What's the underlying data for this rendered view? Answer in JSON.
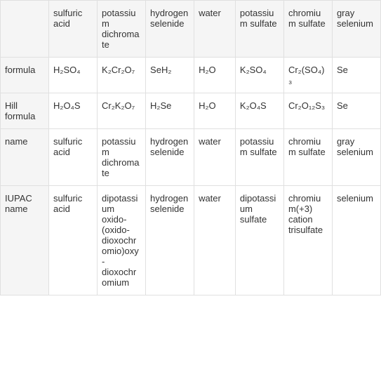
{
  "table": {
    "background_header": "#f5f5f5",
    "border_color": "#e0e0e0",
    "text_color": "#333333",
    "font_size": 13,
    "headers": {
      "row_header_bg": "#f5f5f5",
      "col1": "",
      "col2": "sulfuric acid",
      "col3": "potassium dichromate",
      "col4": "hydrogen selenide",
      "col5": "water",
      "col6": "potassium sulfate",
      "col7": "chromium sulfate",
      "col8": "gray selenium"
    },
    "rows": [
      {
        "label": "formula",
        "cells": [
          "H₂SO₄",
          "K₂Cr₂O₇",
          "SeH₂",
          "H₂O",
          "K₂SO₄",
          "Cr₂(SO₄)₃",
          "Se"
        ]
      },
      {
        "label": "Hill formula",
        "cells": [
          "H₂O₄S",
          "Cr₂K₂O₇",
          "H₂Se",
          "H₂O",
          "K₂O₄S",
          "Cr₂O₁₂S₃",
          "Se"
        ]
      },
      {
        "label": "name",
        "cells": [
          "sulfuric acid",
          "potassium dichromate",
          "hydrogen selenide",
          "water",
          "potassium sulfate",
          "chromium sulfate",
          "gray selenium"
        ]
      },
      {
        "label": "IUPAC name",
        "cells": [
          "sulfuric acid",
          "dipotassium oxido-(oxido-dioxochromio)oxy-dioxochromium",
          "hydrogen selenide",
          "water",
          "dipotassium sulfate",
          "chromium(+3) cation trisulfate",
          "selenium"
        ]
      }
    ]
  }
}
